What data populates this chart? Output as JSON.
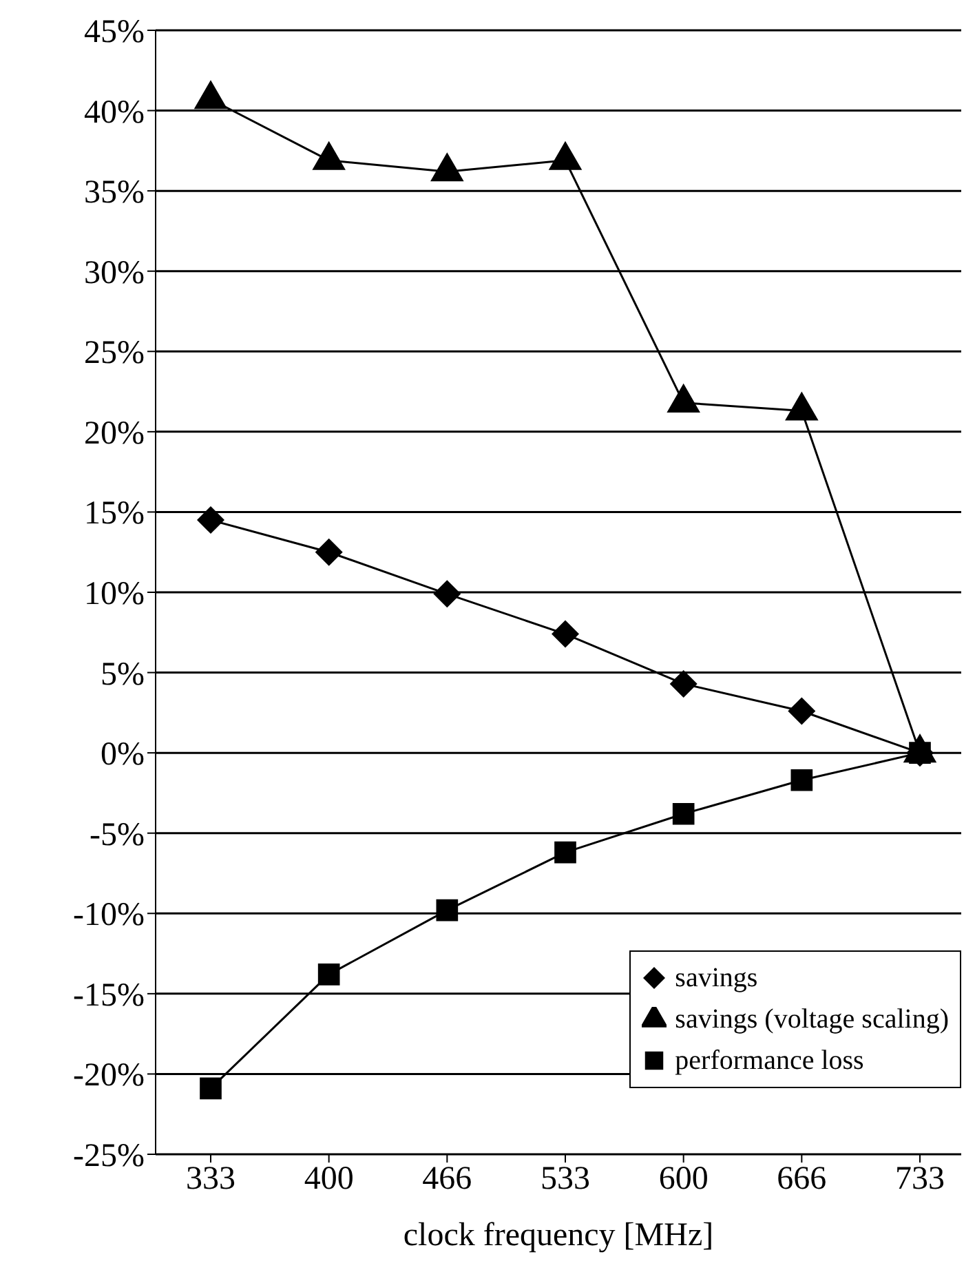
{
  "chart_data": {
    "type": "line",
    "xlabel": "clock frequency [MHz]",
    "categories": [
      "333",
      "400",
      "466",
      "533",
      "600",
      "666",
      "733"
    ],
    "series": [
      {
        "name": "savings",
        "color": "#000000",
        "marker": "diamond",
        "values": [
          14.5,
          12.5,
          9.9,
          7.4,
          4.3,
          2.6,
          0
        ]
      },
      {
        "name": "savings (voltage scaling)",
        "color": "#000000",
        "marker": "triangle",
        "values": [
          40.7,
          36.9,
          36.2,
          36.9,
          21.8,
          21.3,
          0
        ]
      },
      {
        "name": "performance loss",
        "color": "#000000",
        "marker": "square",
        "values": [
          -20.9,
          -13.8,
          -9.8,
          -6.2,
          -3.8,
          -1.7,
          0
        ]
      }
    ],
    "ylim": [
      -25,
      45
    ],
    "yticks": [
      {
        "value": -25,
        "label": "-25%"
      },
      {
        "value": -20,
        "label": "-20%"
      },
      {
        "value": -15,
        "label": "-15%"
      },
      {
        "value": -10,
        "label": "-10%"
      },
      {
        "value": -5,
        "label": "-5%"
      },
      {
        "value": 0,
        "label": "0%"
      },
      {
        "value": 5,
        "label": "5%"
      },
      {
        "value": 10,
        "label": "10%"
      },
      {
        "value": 15,
        "label": "15%"
      },
      {
        "value": 20,
        "label": "20%"
      },
      {
        "value": 25,
        "label": "25%"
      },
      {
        "value": 30,
        "label": "30%"
      },
      {
        "value": 35,
        "label": "35%"
      },
      {
        "value": 40,
        "label": "40%"
      },
      {
        "value": 45,
        "label": "45%"
      }
    ],
    "grid": "y",
    "legend": "bottom right",
    "line_style": "solid"
  }
}
